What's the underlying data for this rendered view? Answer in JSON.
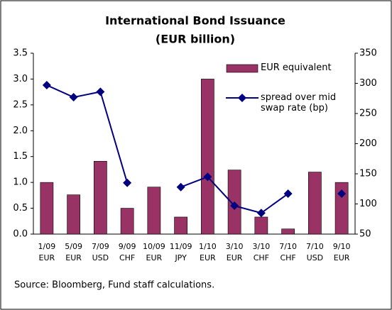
{
  "chart_data": {
    "type": "bar-line",
    "title": "International Bond Issuance",
    "subtitle": "(EUR billion)",
    "categories": [
      [
        "1/09",
        "EUR"
      ],
      [
        "5/09",
        "EUR"
      ],
      [
        "7/09",
        "USD"
      ],
      [
        "9/09",
        "CHF"
      ],
      [
        "10/09",
        "EUR"
      ],
      [
        "11/09",
        "JPY"
      ],
      [
        "1/10",
        "EUR"
      ],
      [
        "3/10",
        "EUR"
      ],
      [
        "3/10",
        "CHF"
      ],
      [
        "7/10",
        "CHF"
      ],
      [
        "7/10",
        "USD"
      ],
      [
        "9/10",
        "EUR"
      ]
    ],
    "series": [
      {
        "name": "EUR equivalent",
        "color": "#993366",
        "type": "bar",
        "values": [
          1.0,
          0.76,
          1.41,
          0.5,
          0.91,
          0.33,
          3.0,
          1.24,
          0.33,
          0.1,
          1.2,
          1.0
        ]
      },
      {
        "name": "spread over mid swap rate (bp)",
        "color": "#000080",
        "type": "line",
        "axis": "y2",
        "values": [
          297,
          277,
          286,
          135,
          null,
          128,
          145,
          97,
          85,
          117,
          null,
          117
        ]
      }
    ],
    "ylim": [
      0,
      3.5
    ],
    "yticks": [
      {
        "value": 0,
        "label": "0.0"
      },
      0.5,
      {
        "value": 1,
        "label": "1.0"
      },
      1.5,
      {
        "value": 2,
        "label": "2.0"
      },
      2.5,
      {
        "value": 3,
        "label": "3.0"
      },
      3.5
    ],
    "y2lim": [
      50,
      350
    ],
    "y2ticks": [
      50,
      100,
      150,
      200,
      250,
      300,
      350
    ],
    "source": "Source: Bloomberg, Fund staff calculations."
  }
}
